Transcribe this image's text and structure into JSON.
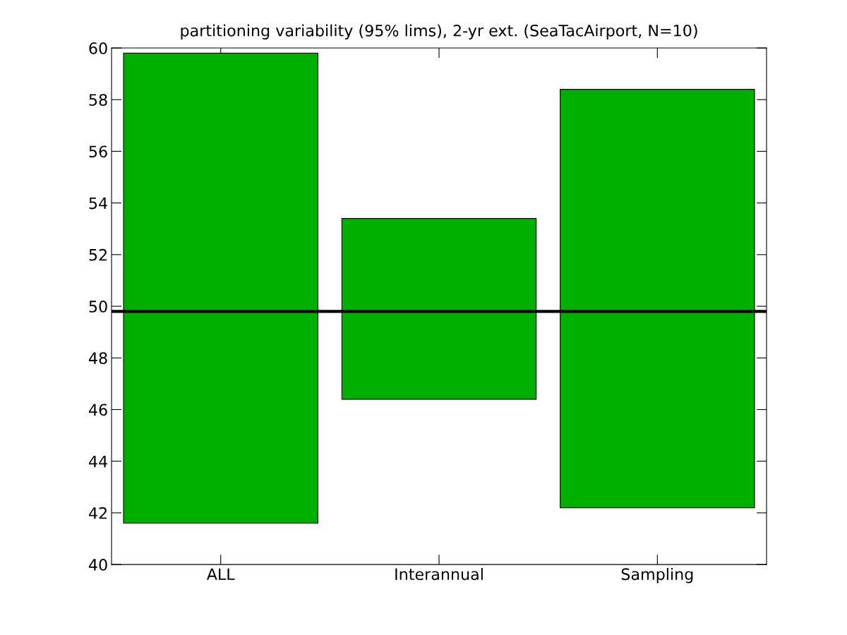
{
  "chart_data": {
    "type": "bar",
    "title": "partitioning variability (95% lims), 2-yr ext. (SeaTacAirport, N=10)",
    "categories": [
      "ALL",
      "Interannual",
      "Sampling"
    ],
    "base": [
      41.6,
      46.4,
      42.2
    ],
    "values": [
      18.2,
      7.0,
      16.2
    ],
    "color": "#00b000",
    "ylim": [
      40,
      60
    ],
    "yticks": [
      40,
      42,
      44,
      46,
      48,
      50,
      52,
      54,
      56,
      58,
      60
    ],
    "ref_lines": [
      {
        "axis": "y",
        "value": 49.8,
        "color": "#000000",
        "line_style": "solid"
      }
    ],
    "grid": false
  }
}
